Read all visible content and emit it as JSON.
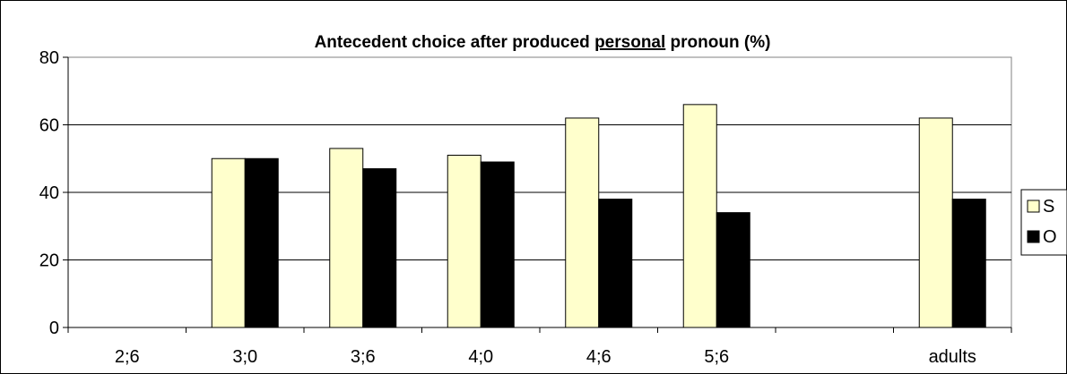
{
  "chart_data": {
    "type": "bar",
    "title_parts": [
      {
        "text": "Antecedent choice after produced ",
        "underline": false
      },
      {
        "text": "personal",
        "underline": true
      },
      {
        "text": " pronoun (%)",
        "underline": false
      }
    ],
    "categories": [
      "2;6",
      "3;0",
      "3;6",
      "4;0",
      "4;6",
      "5;6",
      "",
      "adults"
    ],
    "series": [
      {
        "name": "S",
        "color": "#ffffcc",
        "values": [
          null,
          50,
          53,
          51,
          62,
          66,
          null,
          62
        ]
      },
      {
        "name": "O",
        "color": "#000000",
        "values": [
          null,
          50,
          47,
          49,
          38,
          34,
          null,
          38
        ]
      }
    ],
    "ylim": [
      0,
      80
    ],
    "yticks": [
      0,
      20,
      40,
      60,
      80
    ],
    "grid": true,
    "legend": "right"
  }
}
